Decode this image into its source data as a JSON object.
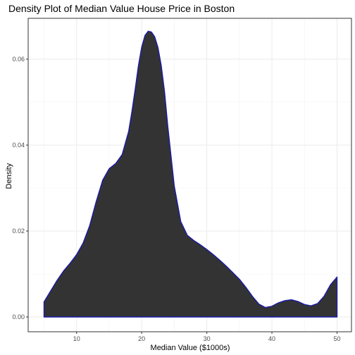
{
  "chart_data": {
    "type": "area",
    "title": "Density Plot of Median Value House Price in Boston",
    "xlabel": "Median Value ($1000s)",
    "ylabel": "Density",
    "xlim": [
      5,
      50
    ],
    "ylim": [
      0,
      0.065
    ],
    "x_ticks": [
      10,
      20,
      30,
      40,
      50
    ],
    "x_tick_labels": [
      "10",
      "20",
      "30",
      "40",
      "50"
    ],
    "y_ticks": [
      0,
      0.02,
      0.04,
      0.06
    ],
    "y_tick_labels": [
      "0.00",
      "0.02",
      "0.04",
      "0.06"
    ],
    "grid": true,
    "legend": "none",
    "fill_color": "#333333",
    "outline_color": "#1a1aa6",
    "series": [
      {
        "x": [
          5,
          6,
          7,
          8,
          9,
          10,
          11,
          12,
          13,
          14,
          15,
          16,
          17,
          18,
          18.5,
          19,
          19.5,
          20,
          20.5,
          21,
          21.5,
          22,
          22.5,
          23,
          23.5,
          24,
          25,
          26,
          27,
          28,
          29,
          30,
          31,
          32,
          33,
          34,
          35,
          36,
          37,
          38,
          39,
          40,
          41,
          42,
          43,
          44,
          45,
          46,
          47,
          48,
          49,
          50
        ],
        "y": [
          0.0035,
          0.006,
          0.0085,
          0.0107,
          0.0125,
          0.0145,
          0.0172,
          0.0212,
          0.0268,
          0.0318,
          0.0345,
          0.0357,
          0.0378,
          0.0432,
          0.0478,
          0.053,
          0.0585,
          0.0628,
          0.0655,
          0.0665,
          0.0663,
          0.0652,
          0.0627,
          0.0585,
          0.0525,
          0.0445,
          0.0305,
          0.0222,
          0.019,
          0.0178,
          0.0168,
          0.0157,
          0.0145,
          0.0132,
          0.0118,
          0.0103,
          0.0088,
          0.0069,
          0.0048,
          0.003,
          0.0022,
          0.0025,
          0.0033,
          0.0038,
          0.004,
          0.0036,
          0.0029,
          0.0026,
          0.0031,
          0.0048,
          0.0075,
          0.0093
        ]
      }
    ]
  }
}
